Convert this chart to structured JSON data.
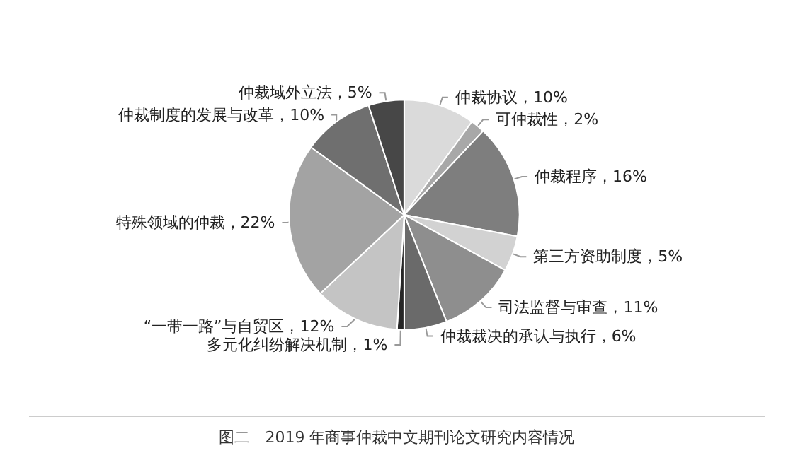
{
  "chart_data": {
    "type": "pie",
    "categories": [
      "仲裁协议",
      "可仲裁性",
      "仲裁程序",
      "第三方资助制度",
      "司法监督与审查",
      "仲裁裁决的承认与执行",
      "多元化纠纷解决机制",
      "“一带一路”与自贸区",
      "特殊领域的仲裁",
      "仲裁制度的发展与改革",
      "仲裁域外立法"
    ],
    "values": [
      10,
      2,
      16,
      5,
      11,
      6,
      1,
      12,
      22,
      10,
      5
    ],
    "value_labels": [
      "10%",
      "2%",
      "16%",
      "5%",
      "11%",
      "6%",
      "1%",
      "12%",
      "22%",
      "10%",
      "5%"
    ],
    "colors": [
      "#dadada",
      "#a8a8a8",
      "#7e7e7e",
      "#d2d2d2",
      "#8e8e8e",
      "#6a6a6a",
      "#262626",
      "#c4c4c4",
      "#a3a3a3",
      "#6f6f6f",
      "#474747"
    ],
    "annotations": [
      "图二　2019 年商事仲裁中文期刊论文研究内容情况"
    ],
    "legend": false
  }
}
